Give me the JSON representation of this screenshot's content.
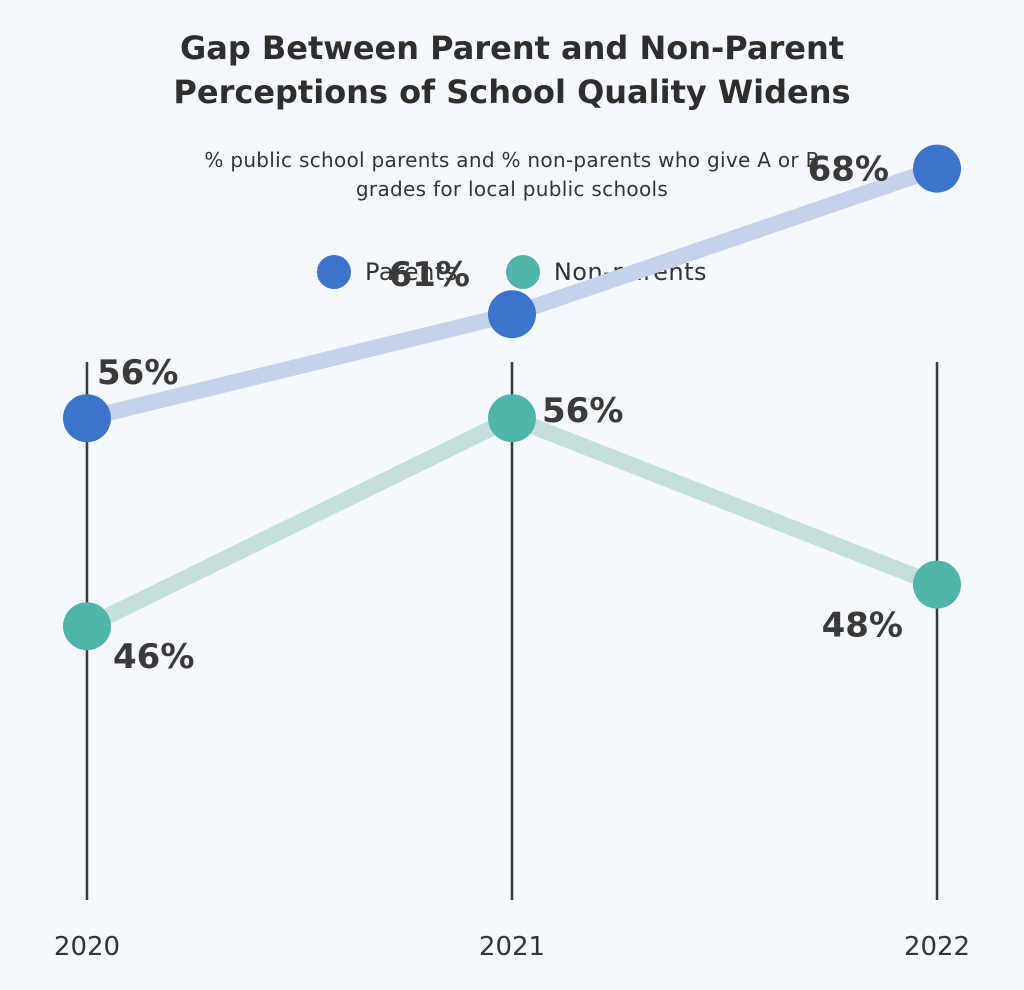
{
  "title_lines": [
    "Gap Between Parent and Non-Parent",
    "Perceptions of School Quality Widens"
  ],
  "subtitle_lines": [
    "% public school parents and % non-parents who give A or B",
    "grades for local public schools"
  ],
  "legend": [
    {
      "label": "Parents",
      "color": "#3d74c9"
    },
    {
      "label": "Non-parents",
      "color": "#4fb4aa"
    }
  ],
  "chart_data": {
    "type": "line",
    "title": "Gap Between Parent and Non-Parent Perceptions of School Quality Widens",
    "subtitle": "% public school parents and % non-parents who give A or B grades for local public schools",
    "categories": [
      "2020",
      "2021",
      "2022"
    ],
    "series": [
      {
        "name": "Parents",
        "values": [
          56,
          61,
          68
        ],
        "labels": [
          "56%",
          "61%",
          "68%"
        ],
        "color": "#3d74c9",
        "line_color": "#c6d1ec"
      },
      {
        "name": "Non-parents",
        "values": [
          46,
          56,
          48
        ],
        "labels": [
          "46%",
          "56%",
          "48%"
        ],
        "color": "#4fb4aa",
        "line_color": "#c5dfdc"
      }
    ],
    "grid": false,
    "legend_position": "top-center"
  }
}
